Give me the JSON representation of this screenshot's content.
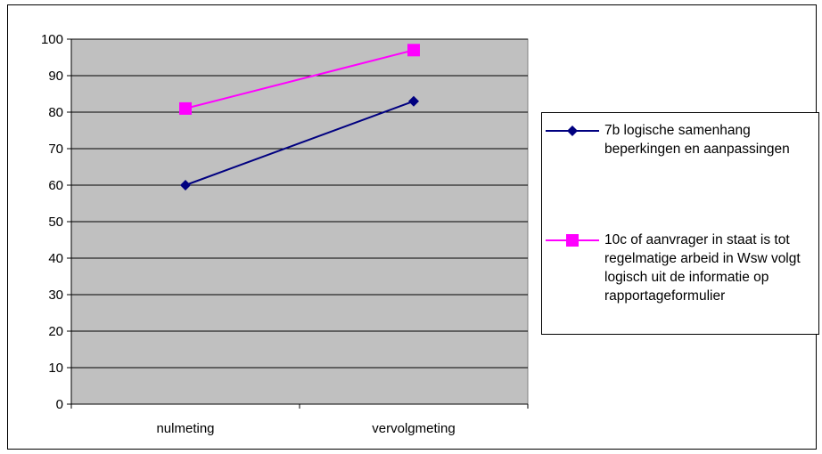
{
  "chart_data": {
    "type": "line",
    "categories": [
      "nulmeting",
      "vervolgmeting"
    ],
    "ylim": [
      0,
      100
    ],
    "yticks": [
      0,
      10,
      20,
      30,
      40,
      50,
      60,
      70,
      80,
      90,
      100
    ],
    "grid": true,
    "legend_position": "right",
    "plot_background": "#c0c0c0",
    "series": [
      {
        "name": "7b logische samenhang beperkingen en aanpassingen",
        "values": [
          60,
          83
        ],
        "color": "#000080",
        "marker": "diamond"
      },
      {
        "name": "10c of aanvrager in staat is tot regelmatige arbeid in Wsw volgt logisch uit de informatie op rapportageformulier",
        "values": [
          81,
          97
        ],
        "color": "#ff00ff",
        "marker": "square"
      }
    ]
  }
}
